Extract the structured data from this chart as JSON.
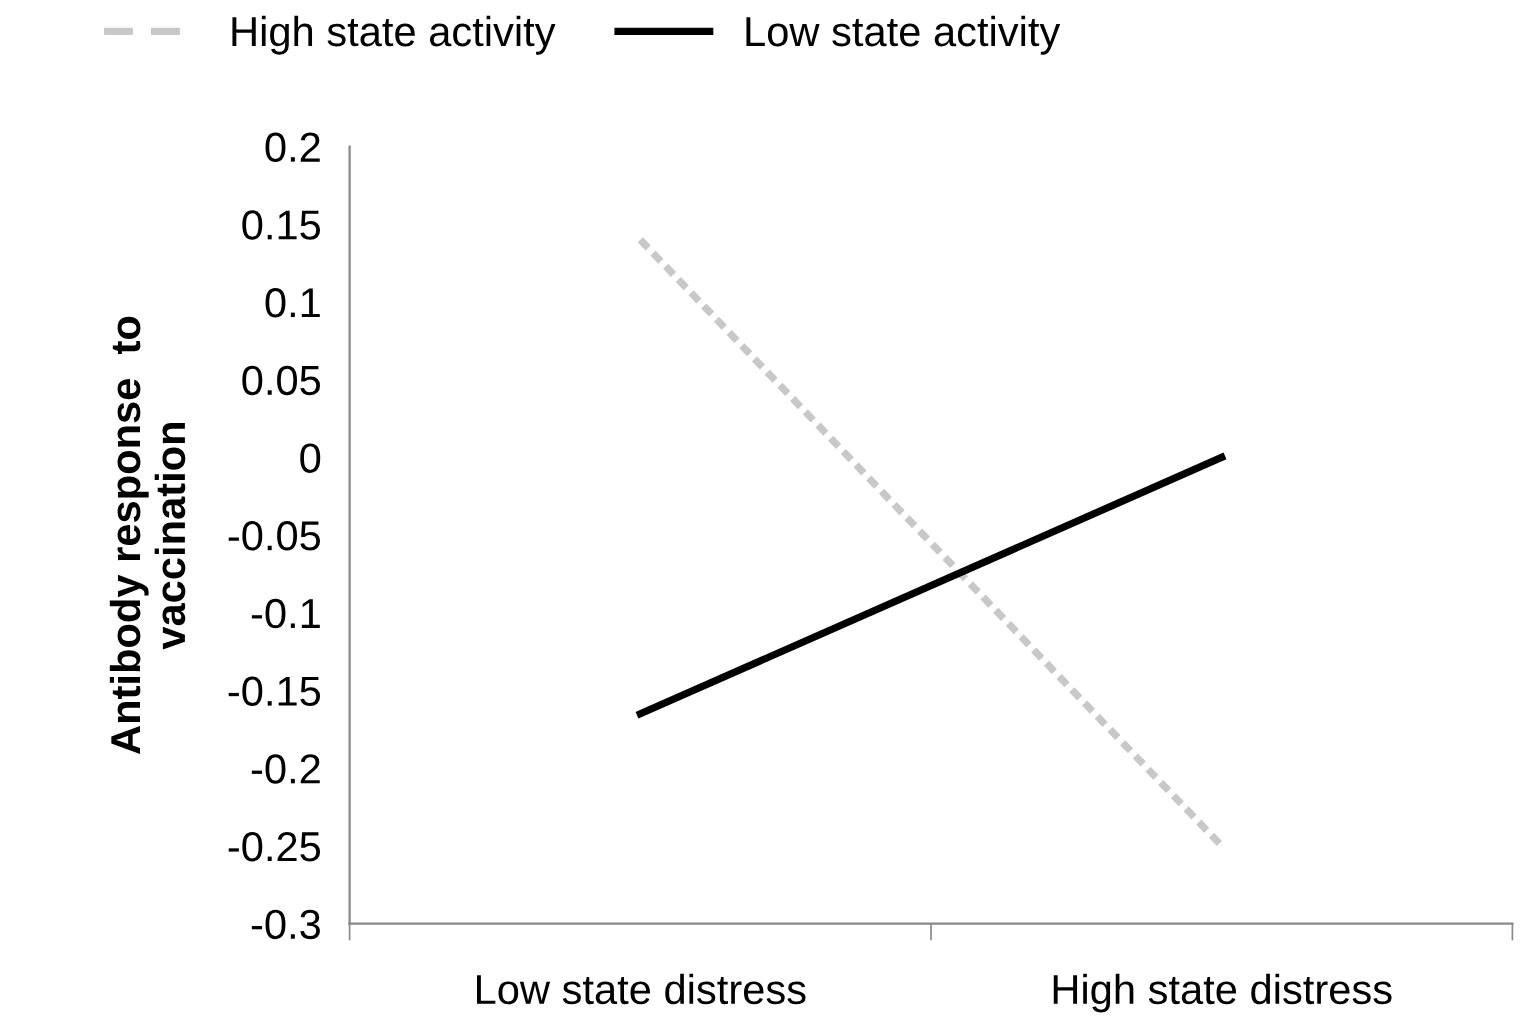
{
  "chart_data": {
    "type": "line",
    "ylabel": "Antibody response  to\nvaccination",
    "categories": [
      "Low state distress",
      "High state distress"
    ],
    "series": [
      {
        "name": "High state activity",
        "color": "#c8c8c8",
        "line_style": "dashed",
        "values": [
          0.14,
          -0.25
        ]
      },
      {
        "name": "Low state activity",
        "color": "#000000",
        "line_style": "solid",
        "values": [
          -0.165,
          0
        ]
      }
    ],
    "ylim": [
      -0.3,
      0.2
    ],
    "yticks": [
      -0.3,
      -0.25,
      -0.2,
      -0.15,
      -0.1,
      -0.05,
      0,
      0.05,
      0.1,
      0.15,
      0.2
    ],
    "grid": false,
    "legend": "top",
    "marker": "none"
  }
}
